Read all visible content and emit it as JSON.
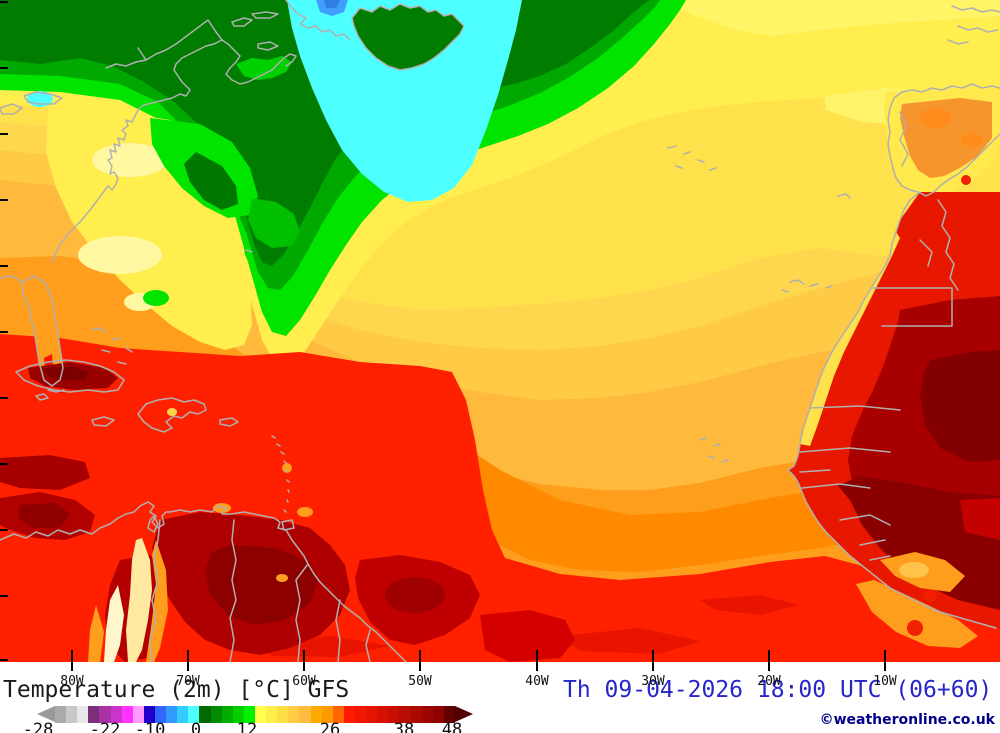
{
  "map": {
    "lon_labels": [
      "80W",
      "70W",
      "60W",
      "50W",
      "40W",
      "30W",
      "20W",
      "10W"
    ]
  },
  "footer": {
    "title": "Temperature (2m) [°C] GFS",
    "datetime": "Th 09-04-2026 18:00 UTC (06+60)",
    "copyright": "©weatheronline.co.uk"
  },
  "scale": {
    "labels": [
      "-28",
      "-22",
      "-10",
      "0",
      "12",
      "26",
      "38",
      "48"
    ],
    "colors": [
      "#aaaaaa",
      "#c8c8c8",
      "#e8e8e8",
      "#7a3078",
      "#a632a6",
      "#cc32cc",
      "#ff32ff",
      "#ff99ff",
      "#2200cc",
      "#3366ff",
      "#3399ff",
      "#33ccff",
      "#4dffff",
      "#006a00",
      "#008c00",
      "#00ae00",
      "#00d000",
      "#00f200",
      "#ffff4c",
      "#ffee49",
      "#ffdd46",
      "#ffcc43",
      "#ffbb40",
      "#ffaa00",
      "#ff9900",
      "#ff6600",
      "#ff1a00",
      "#f21700",
      "#e41400",
      "#d61100",
      "#c80e00",
      "#ba0b00",
      "#ac0800",
      "#9e0500",
      "#900200",
      "#600000"
    ],
    "arrow_left_color": "#999999",
    "arrow_right_color": "#500000"
  },
  "key_colors": {
    "coldest_cyan": "#4dffff",
    "cold_dark_green": "#007c00",
    "mild_yellow": "#ffee4e",
    "warm_amber": "#ffb93c",
    "hot_red": "#ff2000",
    "hottest_dark_red": "#800000",
    "coastline_gray": "#b0b0b0"
  }
}
